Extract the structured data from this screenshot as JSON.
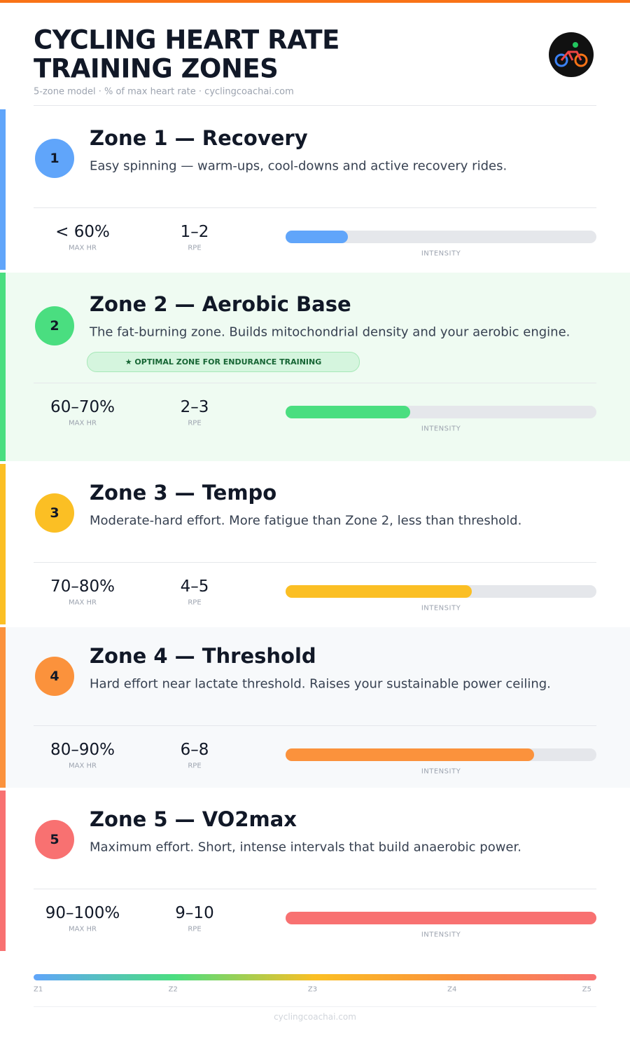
{
  "header": {
    "title_lines": [
      "CYCLING HEART RATE",
      "TRAINING ZONES"
    ],
    "subtitle": "5-zone model · % of max heart rate · cyclingcoachai.com"
  },
  "intensity_lim": [
    0,
    100
  ],
  "zones": [
    {
      "number": "1",
      "title": "Zone 1 — Recovery",
      "description": "Easy spinning — warm-ups, cool-downs and active recovery rides.",
      "hr": "< 60%",
      "hr_label": "MAX HR",
      "rpe": "1–2",
      "rpe_label": "RPE",
      "intensity_label": "INTENSITY",
      "intensity": 20,
      "color": "#60a5fa",
      "background": "#ffffff"
    },
    {
      "number": "2",
      "title": "Zone 2 — Aerobic Base",
      "description": "The fat-burning zone. Builds mitochondrial density and your aerobic engine.",
      "badge": "★ OPTIMAL ZONE FOR ENDURANCE TRAINING",
      "hr": "60–70%",
      "hr_label": "MAX HR",
      "rpe": "2–3",
      "rpe_label": "RPE",
      "intensity_label": "INTENSITY",
      "intensity": 40,
      "color": "#4ade80",
      "background": "#effbf2"
    },
    {
      "number": "3",
      "title": "Zone 3 — Tempo",
      "description": "Moderate-hard effort. More fatigue than Zone 2, less than threshold.",
      "hr": "70–80%",
      "hr_label": "MAX HR",
      "rpe": "4–5",
      "rpe_label": "RPE",
      "intensity_label": "INTENSITY",
      "intensity": 60,
      "color": "#fbbf24",
      "background": "#ffffff"
    },
    {
      "number": "4",
      "title": "Zone 4 — Threshold",
      "description": "Hard effort near lactate threshold. Raises your sustainable power ceiling.",
      "hr": "80–90%",
      "hr_label": "MAX HR",
      "rpe": "6–8",
      "rpe_label": "RPE",
      "intensity_label": "INTENSITY",
      "intensity": 80,
      "color": "#fb923c",
      "background": "#f7f9fb"
    },
    {
      "number": "5",
      "title": "Zone 5 — VO2max",
      "description": "Maximum effort. Short, intense intervals that build anaerobic power.",
      "hr": "90–100%",
      "hr_label": "MAX HR",
      "rpe": "9–10",
      "rpe_label": "RPE",
      "intensity_label": "INTENSITY",
      "intensity": 100,
      "color": "#f87171",
      "background": "#ffffff"
    }
  ],
  "scale_labels": [
    "Z1",
    "Z2",
    "Z3",
    "Z4",
    "Z5"
  ],
  "footer": "cyclingcoachai.com"
}
